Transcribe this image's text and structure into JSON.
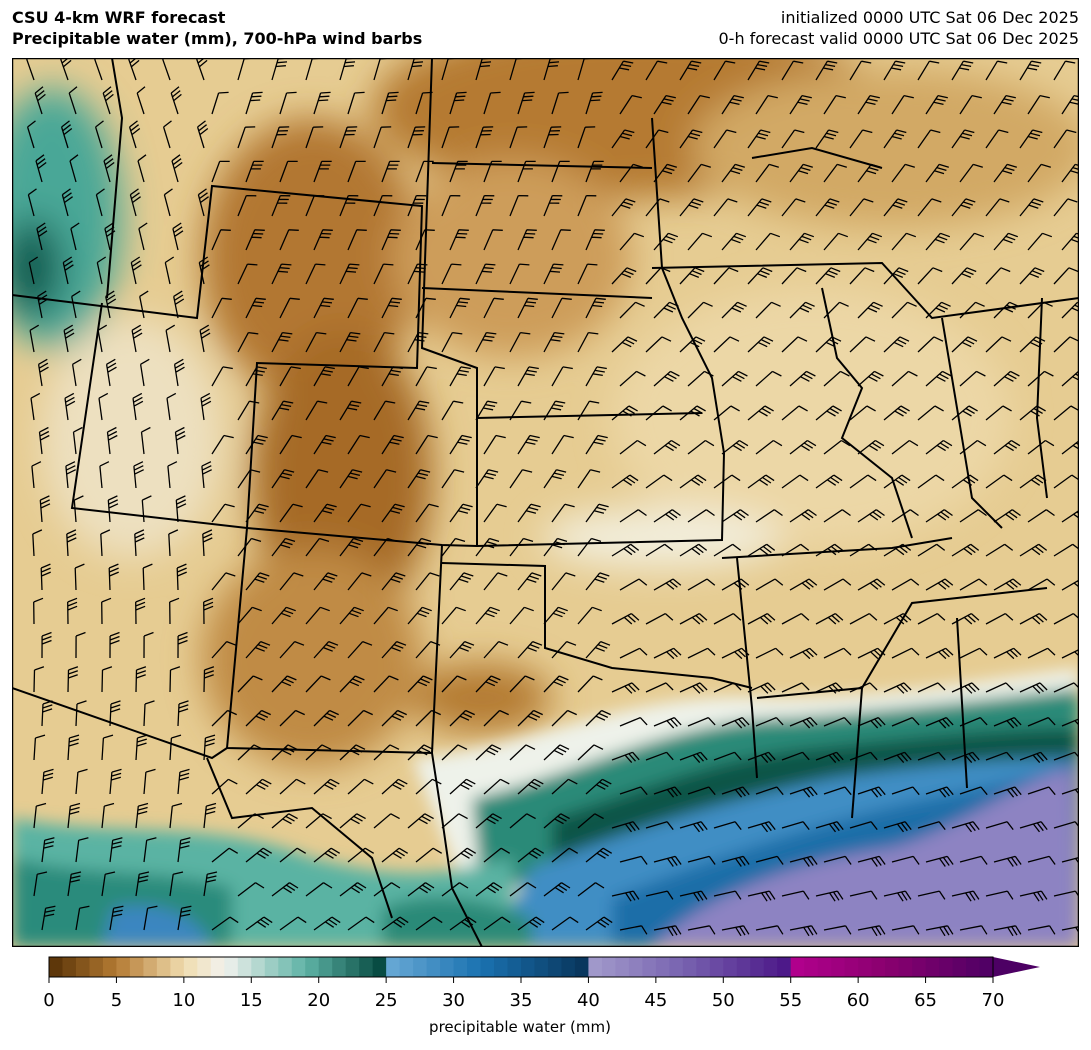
{
  "header": {
    "title_line1": "CSU 4-km WRF forecast",
    "title_line2": "Precipitable water (mm), 700-hPa wind barbs",
    "init_line": "initialized 0000 UTC Sat 06 Dec 2025",
    "valid_line": "0-h forecast valid 0000 UTC Sat 06 Dec 2025"
  },
  "colorbar": {
    "label": "precipitable water (mm)",
    "ticks": [
      "0",
      "5",
      "10",
      "15",
      "20",
      "25",
      "30",
      "35",
      "40",
      "45",
      "50",
      "55",
      "60",
      "65",
      "70"
    ],
    "range": [
      0,
      70
    ],
    "extend": "max",
    "color_stops": [
      {
        "value": 0,
        "color": "#543005"
      },
      {
        "value": 5,
        "color": "#b47a33"
      },
      {
        "value": 10,
        "color": "#f0dcae"
      },
      {
        "value": 13,
        "color": "#f2f2ee"
      },
      {
        "value": 19,
        "color": "#5fb3a6"
      },
      {
        "value": 25,
        "color": "#00433a"
      },
      {
        "value": 25.01,
        "color": "#6aaad6"
      },
      {
        "value": 32,
        "color": "#1a72b0"
      },
      {
        "value": 40,
        "color": "#083359"
      },
      {
        "value": 40.01,
        "color": "#a39ccc"
      },
      {
        "value": 47,
        "color": "#7863b0"
      },
      {
        "value": 55,
        "color": "#4a1486"
      },
      {
        "value": 55.01,
        "color": "#b3008e"
      },
      {
        "value": 62,
        "color": "#8a006f"
      },
      {
        "value": 70,
        "color": "#4d0064"
      }
    ]
  }
}
